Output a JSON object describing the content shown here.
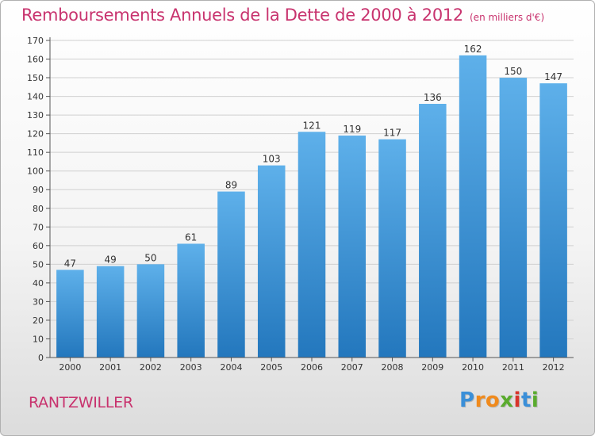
{
  "chart_data": {
    "type": "bar",
    "title": "Remboursements Annuels de la Dette de 2000 à 2012",
    "subtitle": "(en milliers d'€)",
    "categories": [
      "2000",
      "2001",
      "2002",
      "2003",
      "2004",
      "2005",
      "2006",
      "2007",
      "2008",
      "2009",
      "2010",
      "2011",
      "2012"
    ],
    "values": [
      47,
      49,
      50,
      61,
      89,
      103,
      121,
      119,
      117,
      136,
      162,
      150,
      147
    ],
    "ylim": [
      0,
      170
    ],
    "yticks": [
      0,
      10,
      20,
      30,
      40,
      50,
      60,
      70,
      80,
      90,
      100,
      110,
      120,
      130,
      140,
      150,
      160,
      170
    ],
    "grid": true,
    "bar_color": "#3b92d6"
  },
  "footer": {
    "commune": "RANTZWILLER"
  },
  "logo": {
    "letters": [
      "P",
      "r",
      "o",
      "x",
      "i",
      "t",
      "i"
    ],
    "colors": [
      "#3a8fd8",
      "#f08a1c",
      "#f08a1c",
      "#5aab2e",
      "#d8342c",
      "#3a8fd8",
      "#5aab2e"
    ]
  }
}
